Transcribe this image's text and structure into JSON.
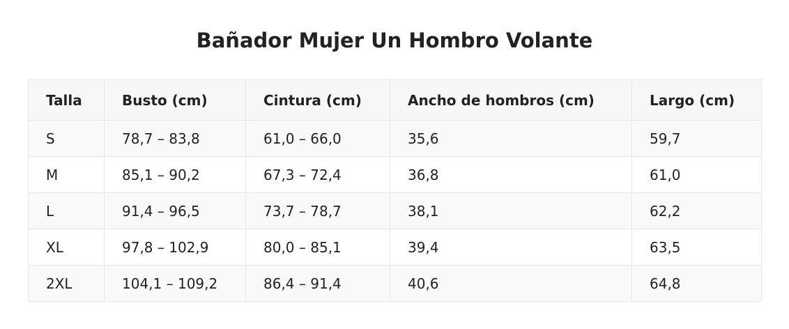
{
  "title": "Bañador Mujer Un Hombro Volante",
  "table": {
    "headers": [
      "Talla",
      "Busto (cm)",
      "Cintura (cm)",
      "Ancho de hombros (cm)",
      "Largo (cm)"
    ],
    "rows": [
      [
        "S",
        "78,7 – 83,8",
        "61,0 – 66,0",
        "35,6",
        "59,7"
      ],
      [
        "M",
        "85,1 – 90,2",
        "67,3 – 72,4",
        "36,8",
        "61,0"
      ],
      [
        "L",
        "91,4 – 96,5",
        "73,7 – 78,7",
        "38,1",
        "62,2"
      ],
      [
        "XL",
        "97,8 – 102,9",
        "80,0 – 85,1",
        "39,4",
        "63,5"
      ],
      [
        "2XL",
        "104,1 – 109,2",
        "86,4 – 91,4",
        "40,6",
        "64,8"
      ]
    ]
  },
  "colors": {
    "text": "#222222",
    "header_bg": "#f7f7f7",
    "stripe_bg": "#f9f9f9",
    "border": "#e6e6e6"
  }
}
